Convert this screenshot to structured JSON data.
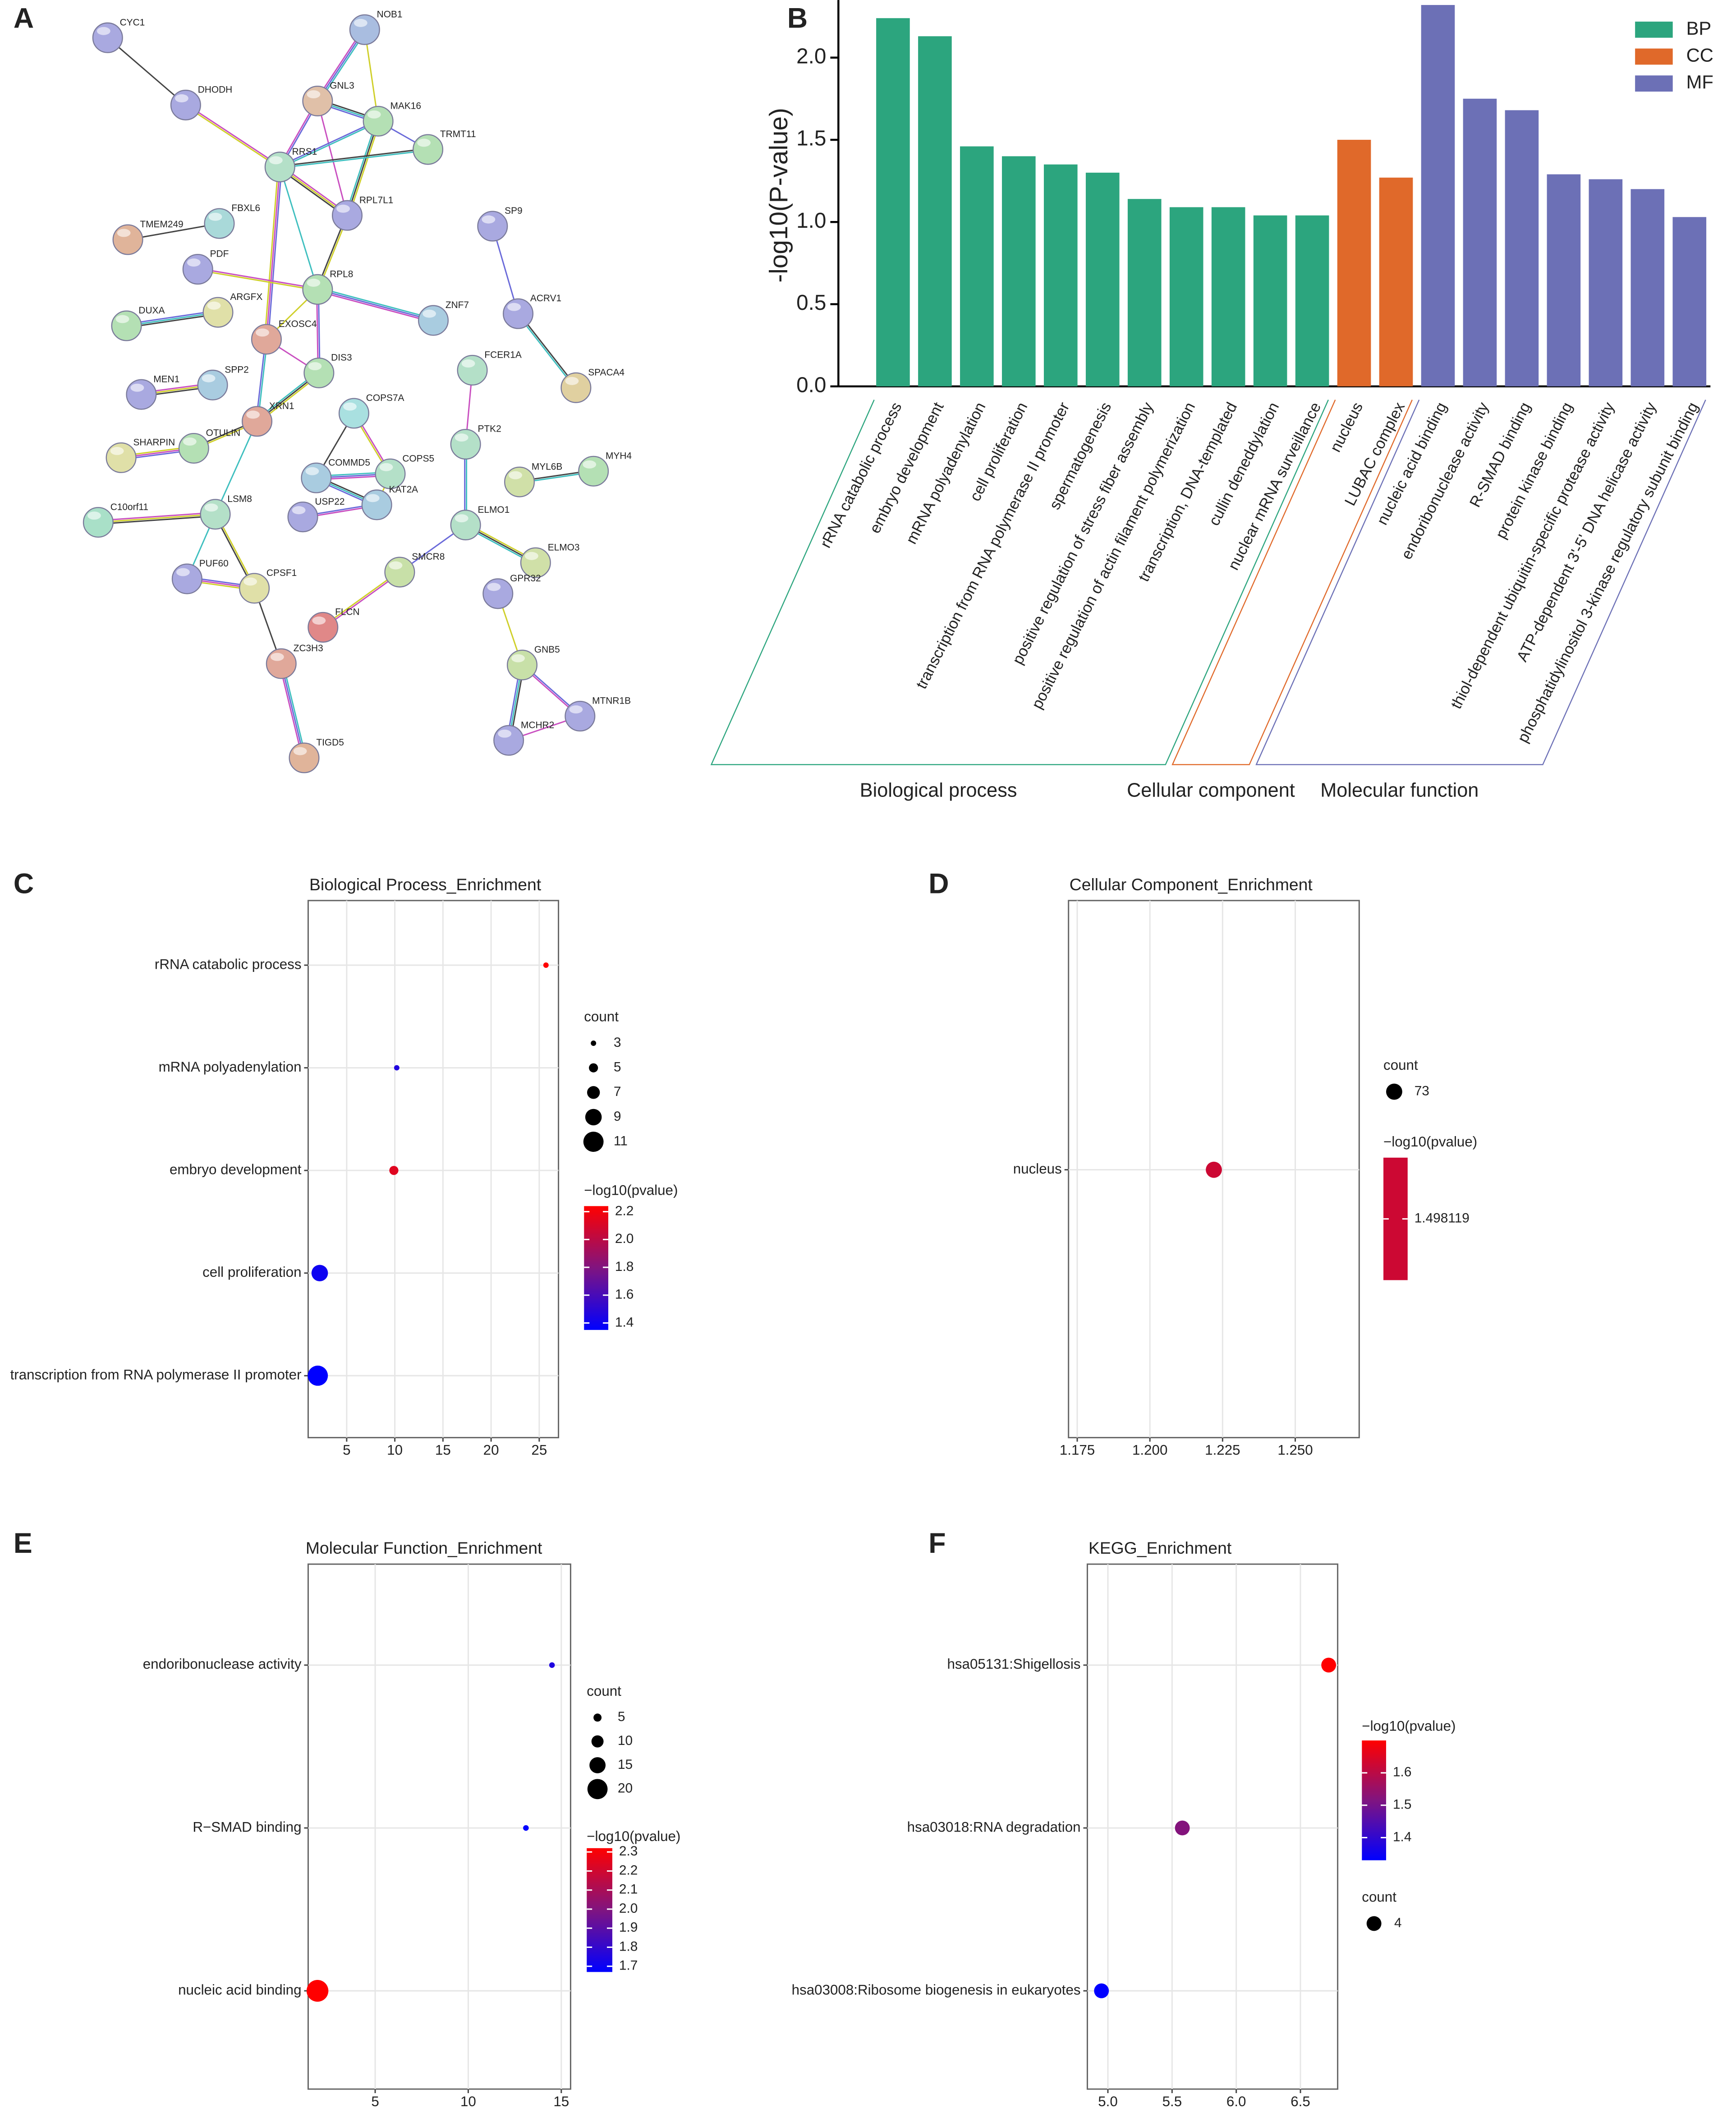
{
  "panel_labels": [
    "A",
    "B",
    "C",
    "D",
    "E",
    "F"
  ],
  "network": {
    "nodes": [
      "CYC1",
      "DHODH",
      "NOB1",
      "GNL3",
      "MAK16",
      "TRMT11",
      "RRS1",
      "RPL7L1",
      "TMEM249",
      "FBXL6",
      "PDF",
      "RPL8",
      "ZNF7",
      "SP9",
      "ACRV1",
      "SPACA4",
      "DUXA",
      "ARGFX",
      "EXOSC4",
      "DIS3",
      "FCER1A",
      "MEN1",
      "SPP2",
      "XRN1",
      "COPS7A",
      "OTULIN",
      "SHARPIN",
      "PTK2",
      "COMMD5",
      "COPS5",
      "KAT2A",
      "USP22",
      "MYL6B",
      "MYH4",
      "C10orf11",
      "LSM8",
      "ELMO1",
      "ELMO3",
      "SMCR8",
      "PUF60",
      "CPSF1",
      "GPR32",
      "FLCN",
      "ZC3H3",
      "GNB5",
      "MTNR1B",
      "MCHR2",
      "TIGD5"
    ]
  },
  "chart_data": [
    {
      "type": "bar",
      "ylabel": "-log10(P-value)",
      "categories": [
        "rRNA catabolic process",
        "embryo development",
        "mRNA polyadenylation",
        "cell proliferation",
        "transcription from RNA polymerase II promoter",
        "spermatogenesis",
        "positive regulation of stress fiber assembly",
        "positive regulation of actin filament polymerization",
        "transcription, DNA-templated",
        "cullin deneddylation",
        "nuclear mRNA surveillance",
        "nucleus",
        "LUBAC complex",
        "nucleic acid binding",
        "endoribonuclease activity",
        "R-SMAD binding",
        "protein kinase binding",
        "thiol-dependent ubiquitin-specific protease activity",
        "ATP-dependent 3'-5' DNA helicase activity",
        "phosphatidylinositol 3-kinase regulatory subunit binding"
      ],
      "series": [
        {
          "name": "BP",
          "color": "#2ca57e",
          "values": [
            2.24,
            2.13,
            1.46,
            1.4,
            1.35,
            1.3,
            1.14,
            1.09,
            1.09,
            1.04,
            1.04,
            null,
            null,
            null,
            null,
            null,
            null,
            null,
            null,
            null
          ]
        },
        {
          "name": "CC",
          "color": "#e0692a",
          "values": [
            null,
            null,
            null,
            null,
            null,
            null,
            null,
            null,
            null,
            null,
            null,
            1.5,
            1.27,
            null,
            null,
            null,
            null,
            null,
            null,
            null
          ]
        },
        {
          "name": "MF",
          "color": "#6c70b6",
          "values": [
            null,
            null,
            null,
            null,
            null,
            null,
            null,
            null,
            null,
            null,
            null,
            null,
            null,
            2.32,
            1.75,
            1.68,
            1.29,
            1.26,
            1.2,
            1.03
          ]
        }
      ],
      "groups": [
        "Biological process",
        "Cellular component",
        "Molecular function"
      ],
      "ylim": [
        0,
        2.35
      ],
      "yticks": [
        {
          "value": 0,
          "label": "0.0"
        },
        0.5,
        {
          "value": 1,
          "label": "1.0"
        },
        1.5,
        {
          "value": 2,
          "label": "2.0"
        }
      ],
      "legend": "upper right"
    },
    {
      "type": "bubble",
      "title": "Biological Process_Enrichment",
      "categories": [
        "rRNA catabolic process",
        "mRNA polyadenylation",
        "embryo development",
        "cell proliferation",
        "transcription from RNA polymerase II promoter"
      ],
      "x": [
        25.7,
        10.2,
        9.9,
        2.2,
        2.0
      ],
      "size": [
        3,
        3,
        5,
        9,
        11
      ],
      "color_values": [
        2.24,
        1.46,
        2.13,
        1.4,
        1.35
      ],
      "size_title": "count",
      "size_ticks": [
        3,
        5,
        7,
        9,
        11
      ],
      "color_title": "−log10(pvalue)",
      "color_ticks": [
        1.4,
        1.6,
        1.8,
        {
          "value": 2,
          "label": "2.0"
        },
        2.2
      ],
      "xlim": [
        1,
        27
      ],
      "xticks": [
        5,
        10,
        15,
        20,
        25
      ],
      "grid": true
    },
    {
      "type": "bubble",
      "title": "Cellular Component_Enrichment",
      "categories": [
        "nucleus"
      ],
      "x": [
        1.222
      ],
      "size": [
        73
      ],
      "color_values": [
        1.498119
      ],
      "size_title": "count",
      "size_ticks": [
        73
      ],
      "color_title": "−log10(pvalue)",
      "color_ticks": [
        1.498119
      ],
      "xlim": [
        1.172,
        1.272
      ],
      "xticks": [
        1.175,
        {
          "value": 1.2,
          "label": "1.200"
        },
        1.225,
        {
          "value": 1.25,
          "label": "1.250"
        }
      ],
      "grid": true
    },
    {
      "type": "bubble",
      "title": "Molecular Function_Enrichment",
      "categories": [
        "endoribonuclease activity",
        "R−SMAD binding",
        "nucleic acid binding"
      ],
      "x": [
        14.5,
        13.1,
        1.9
      ],
      "size": [
        2,
        2,
        22
      ],
      "color_values": [
        1.75,
        1.67,
        2.32
      ],
      "size_title": "count",
      "size_ticks": [
        5,
        10,
        15,
        20
      ],
      "color_title": "−log10(pvalue)",
      "color_ticks": [
        1.7,
        1.8,
        1.9,
        {
          "value": 2,
          "label": "2.0"
        },
        2.1,
        2.2,
        2.3
      ],
      "xlim": [
        1.4,
        15.5
      ],
      "xticks": [
        5,
        10,
        15
      ],
      "grid": true
    },
    {
      "type": "bubble",
      "title": "KEGG_Enrichment",
      "categories": [
        "hsa05131:Shigellosis",
        "hsa03018:RNA degradation",
        "hsa03008:Ribosome biogenesis in eukaryotes"
      ],
      "x": [
        6.72,
        5.58,
        4.95
      ],
      "size": [
        4,
        4,
        4
      ],
      "color_values": [
        1.7,
        1.52,
        1.33
      ],
      "size_title": "count",
      "size_ticks": [
        4
      ],
      "color_title": "−log10(pvalue)",
      "color_ticks": [
        1.4,
        1.5,
        1.6
      ],
      "xlim": [
        4.84,
        6.79
      ],
      "xticks": [
        {
          "value": 5,
          "label": "5.0"
        },
        5.5,
        {
          "value": 6,
          "label": "6.0"
        },
        6.5
      ],
      "grid": true
    }
  ]
}
